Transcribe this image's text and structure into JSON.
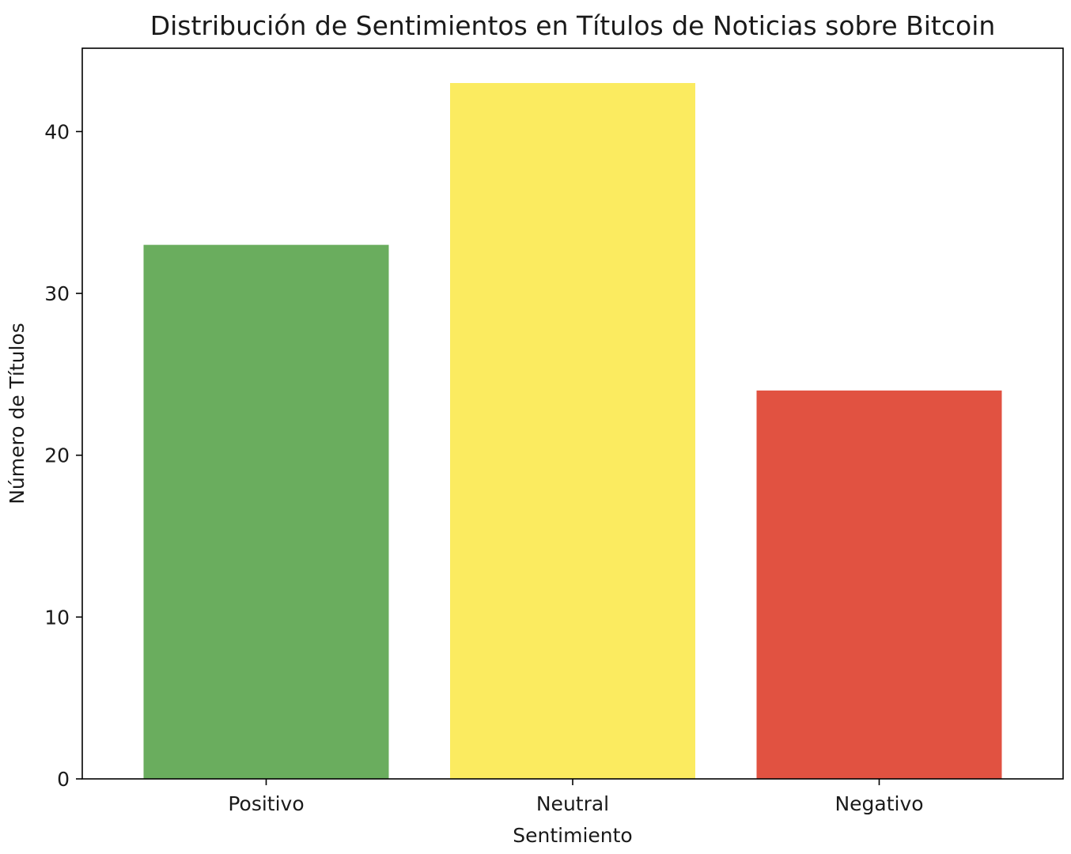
{
  "chart_data": {
    "type": "bar",
    "title": "Distribución de Sentimientos en Títulos de Noticias sobre Bitcoin",
    "xlabel": "Sentimiento",
    "ylabel": "Número de Títulos",
    "categories": [
      "Positivo",
      "Neutral",
      "Negativo"
    ],
    "values": [
      33,
      43,
      24
    ],
    "colors": [
      "#6aad5e",
      "#fbeb60",
      "#e15241"
    ],
    "ylim": [
      0,
      45.15
    ],
    "yticks": [
      0,
      10,
      20,
      30,
      40
    ],
    "grid": false,
    "legend": "none"
  }
}
